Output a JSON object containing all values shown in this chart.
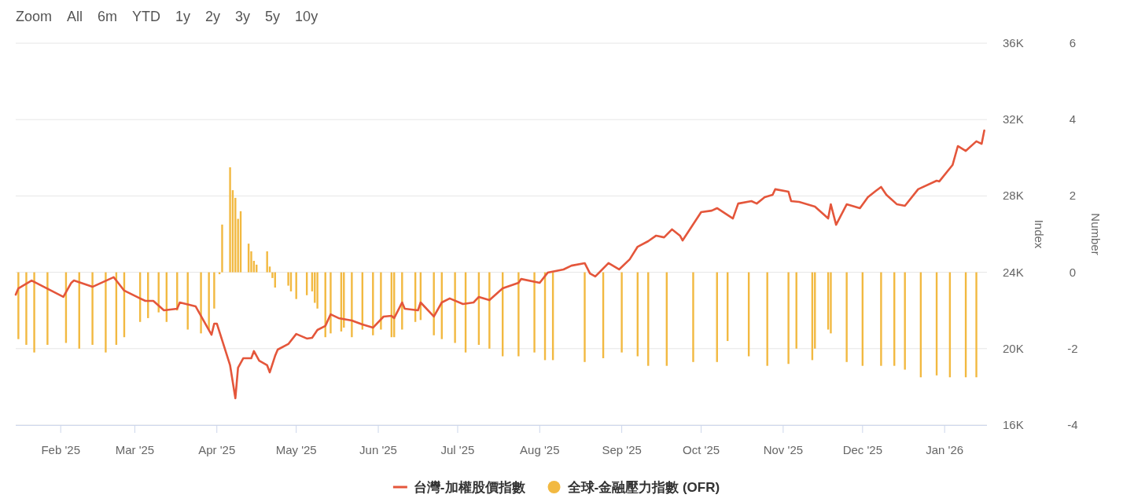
{
  "chart_data": {
    "type": "line",
    "annotations": [
      "Zoom",
      "All",
      "6m",
      "YTD",
      "1y",
      "2y",
      "3y",
      "5y",
      "10y"
    ],
    "ylabel": "Index",
    "y2label": "Number",
    "xlim": [
      "2025-01-15",
      "2026-01-17"
    ],
    "xticks": [
      {
        "value": "2025-02-01",
        "label": "Feb '25"
      },
      {
        "value": "2025-03-01",
        "label": "Mar '25"
      },
      {
        "value": "2025-04-01",
        "label": "Apr '25"
      },
      {
        "value": "2025-05-01",
        "label": "May '25"
      },
      {
        "value": "2025-06-01",
        "label": "Jun '25"
      },
      {
        "value": "2025-07-01",
        "label": "Jul '25"
      },
      {
        "value": "2025-08-01",
        "label": "Aug '25"
      },
      {
        "value": "2025-09-01",
        "label": "Sep '25"
      },
      {
        "value": "2025-10-01",
        "label": "Oct '25"
      },
      {
        "value": "2025-11-01",
        "label": "Nov '25"
      },
      {
        "value": "2025-12-01",
        "label": "Dec '25"
      },
      {
        "value": "2026-01-01",
        "label": "Jan '26"
      }
    ],
    "ylim": [
      16000,
      36000
    ],
    "yticks": [
      {
        "value": 16000,
        "label": "16K"
      },
      {
        "value": 20000,
        "label": "20K"
      },
      {
        "value": 24000,
        "label": "24K"
      },
      {
        "value": 28000,
        "label": "28K"
      },
      {
        "value": 32000,
        "label": "32K"
      },
      {
        "value": 36000,
        "label": "36K"
      }
    ],
    "y2lim": [
      -4,
      6
    ],
    "y2ticks": [
      -4,
      -2,
      0,
      2,
      4,
      6
    ],
    "grid": "y",
    "legend": "bottom",
    "series": [
      {
        "name": "全球-金融壓力指數 (OFR)",
        "type": "bar",
        "axis": "y2",
        "color": "#f2b941",
        "x": [
          "2025-01-16",
          "2025-01-19",
          "2025-01-22",
          "2025-01-27",
          "2025-02-03",
          "2025-02-08",
          "2025-02-13",
          "2025-02-18",
          "2025-02-22",
          "2025-02-25",
          "2025-03-03",
          "2025-03-06",
          "2025-03-10",
          "2025-03-13",
          "2025-03-17",
          "2025-03-21",
          "2025-03-26",
          "2025-03-29",
          "2025-03-31",
          "2025-04-02",
          "2025-04-03",
          "2025-04-06",
          "2025-04-07",
          "2025-04-08",
          "2025-04-09",
          "2025-04-10",
          "2025-04-13",
          "2025-04-14",
          "2025-04-15",
          "2025-04-16",
          "2025-04-20",
          "2025-04-21",
          "2025-04-22",
          "2025-04-23",
          "2025-04-28",
          "2025-04-29",
          "2025-05-01",
          "2025-05-05",
          "2025-05-07",
          "2025-05-08",
          "2025-05-09",
          "2025-05-12",
          "2025-05-14",
          "2025-05-18",
          "2025-05-19",
          "2025-05-22",
          "2025-05-26",
          "2025-05-30",
          "2025-06-02",
          "2025-06-06",
          "2025-06-07",
          "2025-06-10",
          "2025-06-15",
          "2025-06-17",
          "2025-06-22",
          "2025-06-25",
          "2025-06-30",
          "2025-07-04",
          "2025-07-09",
          "2025-07-13",
          "2025-07-18",
          "2025-07-24",
          "2025-07-30",
          "2025-08-03",
          "2025-08-06",
          "2025-08-18",
          "2025-08-25",
          "2025-09-01",
          "2025-09-07",
          "2025-09-11",
          "2025-09-18",
          "2025-09-28",
          "2025-10-07",
          "2025-10-11",
          "2025-10-19",
          "2025-10-26",
          "2025-11-03",
          "2025-11-06",
          "2025-11-12",
          "2025-11-13",
          "2025-11-18",
          "2025-11-19",
          "2025-11-25",
          "2025-12-01",
          "2025-12-08",
          "2025-12-13",
          "2025-12-17",
          "2025-12-23",
          "2025-12-29",
          "2026-01-03",
          "2026-01-09",
          "2026-01-13"
        ],
        "values": [
          -1.75,
          -1.9,
          -2.1,
          -1.9,
          -1.85,
          -2.0,
          -1.9,
          -2.1,
          -1.9,
          -1.7,
          -1.3,
          -1.2,
          -1.05,
          -1.3,
          -1.0,
          -1.5,
          -1.6,
          -1.5,
          -0.95,
          -0.05,
          1.25,
          2.75,
          2.15,
          1.95,
          1.4,
          1.6,
          0.75,
          0.55,
          0.3,
          0.2,
          0.55,
          0.15,
          -0.15,
          -0.4,
          -0.35,
          -0.5,
          -0.7,
          -0.6,
          -0.5,
          -0.8,
          -0.95,
          -1.7,
          -1.6,
          -1.55,
          -1.45,
          -1.7,
          -1.5,
          -1.65,
          -1.5,
          -1.7,
          -1.7,
          -1.5,
          -1.3,
          -1.25,
          -1.65,
          -1.75,
          -1.85,
          -2.1,
          -1.9,
          -2.0,
          -2.2,
          -2.2,
          -2.1,
          -2.3,
          -2.3,
          -2.35,
          -2.25,
          -2.1,
          -2.2,
          -2.45,
          -2.45,
          -2.35,
          -2.35,
          -1.8,
          -2.2,
          -2.45,
          -2.4,
          -2.0,
          -2.3,
          -2.0,
          -1.5,
          -1.6,
          -2.35,
          -2.45,
          -2.45,
          -2.45,
          -2.55,
          -2.75,
          -2.7,
          -2.75,
          -2.75,
          -2.75
        ]
      },
      {
        "name": "台灣-加權股價指數",
        "color": "#e4563b",
        "x": [
          "2025-01-15",
          "2025-01-16",
          "2025-01-21",
          "2025-02-02",
          "2025-02-05",
          "2025-02-06",
          "2025-02-13",
          "2025-02-21",
          "2025-02-22",
          "2025-02-25",
          "2025-03-03",
          "2025-03-05",
          "2025-03-08",
          "2025-03-12",
          "2025-03-17",
          "2025-03-18",
          "2025-03-24",
          "2025-03-30",
          "2025-03-31",
          "2025-04-01",
          "2025-04-06",
          "2025-04-08",
          "2025-04-09",
          "2025-04-11",
          "2025-04-14",
          "2025-04-15",
          "2025-04-17",
          "2025-04-20",
          "2025-04-21",
          "2025-04-23",
          "2025-04-24",
          "2025-04-28",
          "2025-05-01",
          "2025-05-05",
          "2025-05-07",
          "2025-05-09",
          "2025-05-12",
          "2025-05-14",
          "2025-05-17",
          "2025-05-22",
          "2025-05-26",
          "2025-05-30",
          "2025-06-03",
          "2025-06-06",
          "2025-06-07",
          "2025-06-10",
          "2025-06-11",
          "2025-06-16",
          "2025-06-17",
          "2025-06-22",
          "2025-06-25",
          "2025-06-28",
          "2025-07-03",
          "2025-07-07",
          "2025-07-09",
          "2025-07-13",
          "2025-07-18",
          "2025-07-24",
          "2025-07-25",
          "2025-08-01",
          "2025-08-04",
          "2025-08-10",
          "2025-08-13",
          "2025-08-18",
          "2025-08-20",
          "2025-08-22",
          "2025-08-27",
          "2025-08-31",
          "2025-09-04",
          "2025-09-07",
          "2025-09-11",
          "2025-09-14",
          "2025-09-17",
          "2025-09-20",
          "2025-09-23",
          "2025-09-24",
          "2025-10-01",
          "2025-10-05",
          "2025-10-07",
          "2025-10-13",
          "2025-10-15",
          "2025-10-20",
          "2025-10-22",
          "2025-10-25",
          "2025-10-28",
          "2025-10-29",
          "2025-11-03",
          "2025-11-04",
          "2025-11-07",
          "2025-11-13",
          "2025-11-18",
          "2025-11-19",
          "2025-11-21",
          "2025-11-25",
          "2025-11-30",
          "2025-12-03",
          "2025-12-06",
          "2025-12-08",
          "2025-12-10",
          "2025-12-14",
          "2025-12-17",
          "2025-12-22",
          "2025-12-29",
          "2025-12-30",
          "2026-01-04",
          "2026-01-06",
          "2026-01-09",
          "2026-01-13",
          "2026-01-15",
          "2026-01-16"
        ],
        "values": [
          22830,
          23160,
          23570,
          22710,
          23450,
          23570,
          23240,
          23740,
          23570,
          23040,
          22630,
          22500,
          22500,
          22010,
          22090,
          22420,
          22210,
          20730,
          21310,
          21310,
          19130,
          17400,
          19000,
          19500,
          19500,
          19870,
          19370,
          19130,
          18760,
          19620,
          19950,
          20240,
          20770,
          20530,
          20570,
          20980,
          21190,
          21800,
          21600,
          21470,
          21270,
          21100,
          21680,
          21720,
          21600,
          22420,
          22090,
          22010,
          22420,
          21680,
          22420,
          22630,
          22340,
          22420,
          22710,
          22540,
          23160,
          23450,
          23650,
          23450,
          23980,
          24150,
          24350,
          24480,
          23940,
          23780,
          24480,
          24150,
          24680,
          25340,
          25630,
          25920,
          25830,
          26250,
          25920,
          25670,
          27150,
          27230,
          27360,
          26820,
          27600,
          27730,
          27600,
          27930,
          28060,
          28350,
          28220,
          27730,
          27690,
          27440,
          26820,
          27560,
          26490,
          27560,
          27360,
          27930,
          28260,
          28470,
          28060,
          27560,
          27480,
          28350,
          28800,
          28760,
          29620,
          30610,
          30360,
          30860,
          30730,
          31430
        ]
      }
    ]
  }
}
